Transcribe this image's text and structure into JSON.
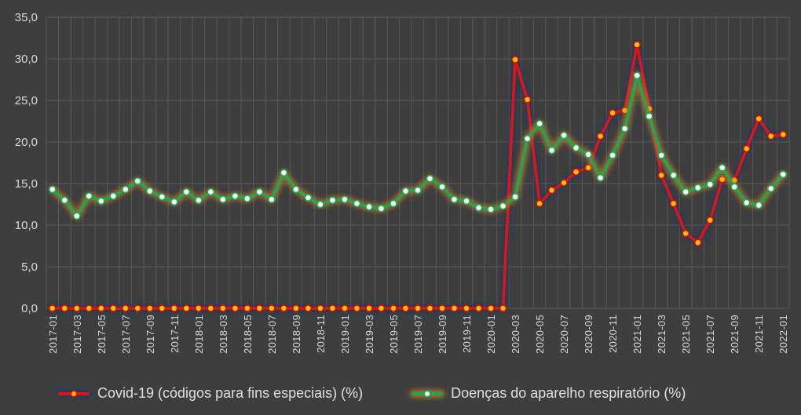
{
  "chart_data": {
    "type": "line",
    "title": "",
    "xlabel": "",
    "ylabel": "",
    "ylim": [
      0,
      35
    ],
    "y_tick_step": 5,
    "y_ticks": [
      "0,0",
      "5,0",
      "10,0",
      "15,0",
      "20,0",
      "25,0",
      "30,0",
      "35,0"
    ],
    "x_tick_interval": 2,
    "grid": "both",
    "legend_position": "bottom",
    "x": [
      "2017-01",
      "2017-02",
      "2017-03",
      "2017-04",
      "2017-05",
      "2017-06",
      "2017-07",
      "2017-08",
      "2017-09",
      "2017-10",
      "2017-11",
      "2017-12",
      "2018-01",
      "2018-02",
      "2018-03",
      "2018-04",
      "2018-05",
      "2018-06",
      "2018-07",
      "2018-08",
      "2018-09",
      "2018-10",
      "2018-11",
      "2018-12",
      "2019-01",
      "2019-02",
      "2019-03",
      "2019-04",
      "2019-05",
      "2019-06",
      "2019-07",
      "2019-08",
      "2019-09",
      "2019-10",
      "2019-11",
      "2019-12",
      "2020-01",
      "2020-02",
      "2020-03",
      "2020-04",
      "2020-05",
      "2020-06",
      "2020-07",
      "2020-08",
      "2020-09",
      "2020-10",
      "2020-11",
      "2020-12",
      "2021-01",
      "2021-02",
      "2021-03",
      "2021-04",
      "2021-05",
      "2021-06",
      "2021-07",
      "2021-08",
      "2021-09",
      "2021-10",
      "2021-11",
      "2021-12",
      "2022-01"
    ],
    "series": [
      {
        "id": "covid19",
        "name": "Covid-19 (códigos para fins especiais) (%)",
        "line_color": "#e01414",
        "marker_fill": "#ffc000",
        "marker_stroke": "#c41010",
        "glow_color": "#1f3864",
        "values": [
          0.0,
          0.0,
          0.0,
          0.0,
          0.0,
          0.0,
          0.0,
          0.0,
          0.0,
          0.0,
          0.0,
          0.0,
          0.0,
          0.0,
          0.0,
          0.0,
          0.0,
          0.0,
          0.0,
          0.0,
          0.0,
          0.0,
          0.0,
          0.0,
          0.0,
          0.0,
          0.0,
          0.0,
          0.0,
          0.0,
          0.0,
          0.0,
          0.0,
          0.0,
          0.0,
          0.0,
          0.0,
          0.0,
          29.9,
          25.1,
          12.6,
          14.2,
          15.1,
          16.4,
          16.9,
          20.7,
          23.5,
          23.8,
          31.7,
          24.0,
          16.0,
          12.6,
          9.0,
          7.9,
          10.6,
          15.5,
          15.4,
          19.2,
          22.8,
          20.7,
          20.9
        ]
      },
      {
        "id": "respiratorio",
        "name": "Doenças do aparelho respiratório (%)",
        "line_color": "#1fa84f",
        "marker_fill": "#ffffff",
        "marker_stroke": "#1fa84f",
        "glow_color": "#c8842f",
        "values": [
          14.3,
          13.0,
          11.1,
          13.5,
          12.9,
          13.5,
          14.3,
          15.3,
          14.1,
          13.4,
          12.8,
          14.0,
          13.0,
          14.0,
          13.1,
          13.5,
          13.2,
          14.0,
          13.1,
          16.3,
          14.3,
          13.3,
          12.5,
          13.0,
          13.1,
          12.6,
          12.2,
          12.0,
          12.6,
          14.1,
          14.2,
          15.6,
          14.6,
          13.1,
          12.9,
          12.1,
          11.9,
          12.3,
          13.4,
          20.4,
          22.2,
          19.0,
          20.8,
          19.3,
          18.5,
          15.7,
          18.4,
          21.6,
          28.0,
          23.1,
          18.4,
          16.0,
          14.0,
          14.5,
          14.9,
          16.9,
          14.6,
          12.7,
          12.4,
          14.4,
          16.1
        ]
      }
    ]
  },
  "colors": {
    "background": "#3e3e3e",
    "grid": "#5a5a5a",
    "axis_text": "#d9d9d9",
    "legend_text": "#e0e0e0"
  }
}
